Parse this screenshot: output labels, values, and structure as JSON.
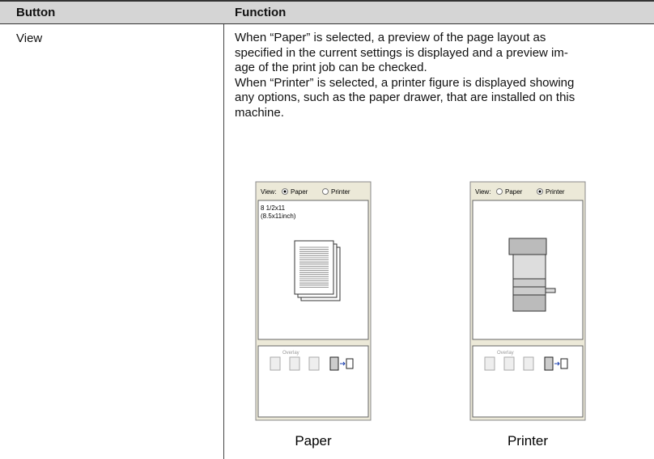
{
  "table": {
    "header": [
      "Button",
      "Function"
    ],
    "rows": [
      {
        "button": "View",
        "function_lines": [
          "When “Paper” is selected, a preview of the page layout as",
          "specified in the current settings is displayed and a preview im-",
          "age of the print job can be checked.",
          "When “Printer” is selected, a printer figure is displayed showing",
          "any options, such as the paper drawer, that are installed on this",
          "machine."
        ],
        "figures": [
          {
            "view_label": "View:",
            "options": [
              "Paper",
              "Printer"
            ],
            "paper_size": [
              "8 1/2x11",
              "(8.5x11inch)"
            ],
            "overlay": "Overlay",
            "caption": "Paper"
          },
          {
            "view_label": "View:",
            "options": [
              "Paper",
              "Printer"
            ],
            "overlay": "Overlay",
            "caption": "Printer"
          }
        ]
      }
    ]
  }
}
